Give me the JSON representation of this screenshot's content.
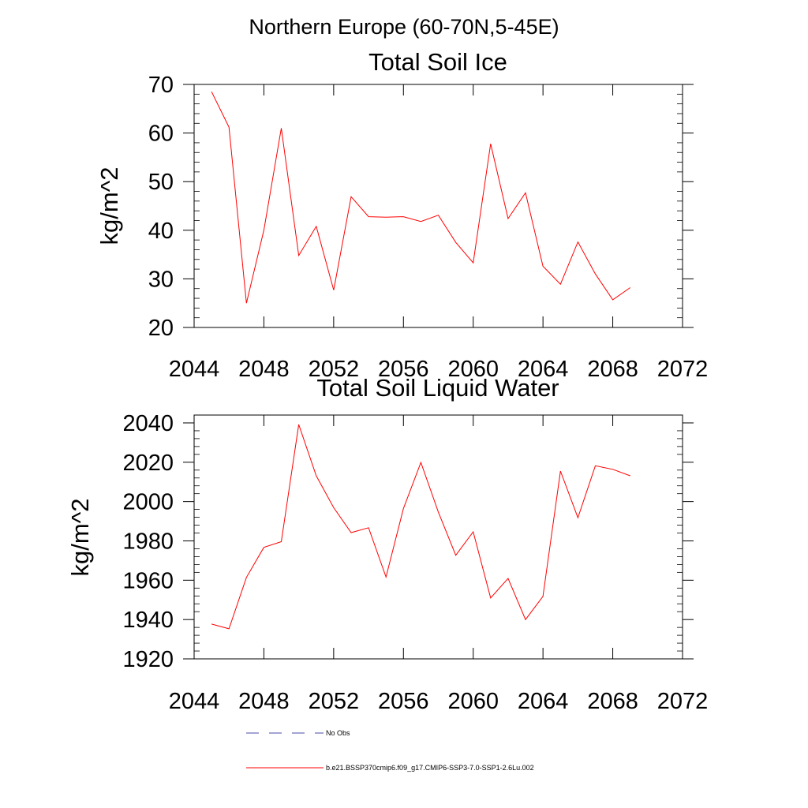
{
  "suptitle": "Northern Europe (60-70N,5-45E)",
  "chart_data": [
    {
      "type": "line",
      "title": "Total Soil Ice",
      "xlabel": "",
      "ylabel": "kg/m^2",
      "xlim": [
        2044,
        2072
      ],
      "ylim": [
        20,
        70
      ],
      "xticks": [
        2044,
        2048,
        2052,
        2056,
        2060,
        2064,
        2068,
        2072
      ],
      "yticks": [
        20,
        30,
        40,
        50,
        60,
        70
      ],
      "x": [
        2045,
        2046,
        2047,
        2048,
        2049,
        2050,
        2051,
        2052,
        2053,
        2054,
        2055,
        2056,
        2057,
        2058,
        2059,
        2060,
        2061,
        2062,
        2063,
        2064,
        2065,
        2066,
        2067,
        2068,
        2069
      ],
      "series": [
        {
          "name": "b.e21.BSSP370cmip6.f09_g17.CMIP6-SSP3-7.0-SSP1-2.6Lu.002",
          "color": "#ff0000",
          "values": [
            68.5,
            61.2,
            25.0,
            40.0,
            61.0,
            34.8,
            40.8,
            27.7,
            46.9,
            42.8,
            42.7,
            42.8,
            41.8,
            43.1,
            37.5,
            33.3,
            57.8,
            42.4,
            47.7,
            32.6,
            28.9,
            37.6,
            31.0,
            25.7,
            28.2
          ]
        }
      ]
    },
    {
      "type": "line",
      "title": "Total Soil Liquid Water",
      "xlabel": "",
      "ylabel": "kg/m^2",
      "xlim": [
        2044,
        2072
      ],
      "ylim": [
        1920,
        2044
      ],
      "xticks": [
        2044,
        2048,
        2052,
        2056,
        2060,
        2064,
        2068,
        2072
      ],
      "yticks": [
        1920,
        1940,
        1960,
        1980,
        2000,
        2020,
        2040
      ],
      "x": [
        2045,
        2046,
        2047,
        2048,
        2049,
        2050,
        2051,
        2052,
        2053,
        2054,
        2055,
        2056,
        2057,
        2058,
        2059,
        2060,
        2061,
        2062,
        2063,
        2064,
        2065,
        2066,
        2067,
        2068,
        2069
      ],
      "series": [
        {
          "name": "b.e21.BSSP370cmip6.f09_g17.CMIP6-SSP3-7.0-SSP1-2.6Lu.002",
          "color": "#ff0000",
          "values": [
            1937.7,
            1935.3,
            1961.4,
            1976.7,
            1979.6,
            2039.2,
            2013.1,
            1996.9,
            1984.2,
            1986.7,
            1961.6,
            1996.5,
            2019.9,
            1994.7,
            1972.7,
            1984.6,
            1951.0,
            1960.9,
            1940.0,
            1951.8,
            2015.5,
            1991.8,
            2018.2,
            2016.4,
            2013.1
          ]
        }
      ]
    }
  ],
  "legend": [
    {
      "label": "No Obs",
      "color": "#4a4aa8",
      "style": "dashed"
    },
    {
      "label": "b.e21.BSSP370cmip6.f09_g17.CMIP6-SSP3-7.0-SSP1-2.6Lu.002",
      "color": "#ff0000",
      "style": "solid"
    }
  ]
}
